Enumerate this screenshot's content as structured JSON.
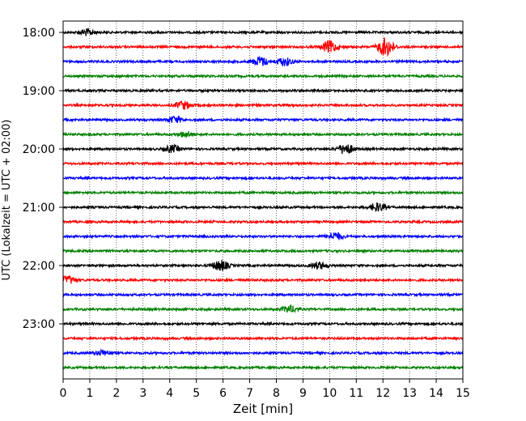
{
  "chart_data": {
    "type": "line",
    "title": "",
    "xlabel": "Zeit  [min]",
    "ylabel": "UTC (Lokalzeit = UTC + 02:00)",
    "xlim": [
      0,
      15
    ],
    "xticks": [
      0,
      1,
      2,
      3,
      4,
      5,
      6,
      7,
      8,
      9,
      10,
      11,
      12,
      13,
      14,
      15
    ],
    "x_grid": "dotted",
    "yticks": [
      "18:00",
      "19:00",
      "20:00",
      "21:00",
      "22:00",
      "23:00"
    ],
    "trace_interval_minutes": 15,
    "trace_colors": [
      "#000000",
      "#ff0000",
      "#0000ff",
      "#008000"
    ],
    "series": [
      {
        "start": "18:00",
        "color": "#000000",
        "events": [
          {
            "t": 0.9,
            "amp": 0.5
          }
        ]
      },
      {
        "start": "18:15",
        "color": "#ff0000",
        "events": [
          {
            "t": 10.0,
            "amp": 0.9
          },
          {
            "t": 12.1,
            "amp": 1.4
          }
        ]
      },
      {
        "start": "18:30",
        "color": "#0000ff",
        "events": [
          {
            "t": 7.4,
            "amp": 0.7
          },
          {
            "t": 8.3,
            "amp": 0.6
          }
        ]
      },
      {
        "start": "18:45",
        "color": "#008000",
        "events": []
      },
      {
        "start": "19:00",
        "color": "#000000",
        "events": []
      },
      {
        "start": "19:15",
        "color": "#ff0000",
        "events": [
          {
            "t": 4.5,
            "amp": 0.6
          }
        ]
      },
      {
        "start": "19:30",
        "color": "#0000ff",
        "events": [
          {
            "t": 4.2,
            "amp": 0.5
          }
        ]
      },
      {
        "start": "19:45",
        "color": "#008000",
        "events": [
          {
            "t": 4.6,
            "amp": 0.4
          }
        ]
      },
      {
        "start": "20:00",
        "color": "#000000",
        "events": [
          {
            "t": 4.1,
            "amp": 0.5
          },
          {
            "t": 10.6,
            "amp": 0.8
          }
        ]
      },
      {
        "start": "20:15",
        "color": "#ff0000",
        "events": []
      },
      {
        "start": "20:30",
        "color": "#0000ff",
        "events": []
      },
      {
        "start": "20:45",
        "color": "#008000",
        "events": []
      },
      {
        "start": "21:00",
        "color": "#000000",
        "events": [
          {
            "t": 11.8,
            "amp": 0.6
          }
        ]
      },
      {
        "start": "21:15",
        "color": "#ff0000",
        "events": []
      },
      {
        "start": "21:30",
        "color": "#0000ff",
        "events": [
          {
            "t": 10.2,
            "amp": 0.6
          }
        ]
      },
      {
        "start": "21:45",
        "color": "#008000",
        "events": []
      },
      {
        "start": "22:00",
        "color": "#000000",
        "events": [
          {
            "t": 5.9,
            "amp": 0.8
          },
          {
            "t": 9.6,
            "amp": 0.5
          }
        ]
      },
      {
        "start": "22:15",
        "color": "#ff0000",
        "events": [
          {
            "t": 0.2,
            "amp": 0.6
          }
        ]
      },
      {
        "start": "22:30",
        "color": "#0000ff",
        "events": []
      },
      {
        "start": "22:45",
        "color": "#008000",
        "events": [
          {
            "t": 8.5,
            "amp": 0.5
          }
        ]
      },
      {
        "start": "23:00",
        "color": "#000000",
        "events": []
      },
      {
        "start": "23:15",
        "color": "#ff0000",
        "events": []
      },
      {
        "start": "23:30",
        "color": "#0000ff",
        "events": [
          {
            "t": 1.5,
            "amp": 0.4
          }
        ]
      },
      {
        "start": "23:45",
        "color": "#008000",
        "events": []
      }
    ]
  }
}
